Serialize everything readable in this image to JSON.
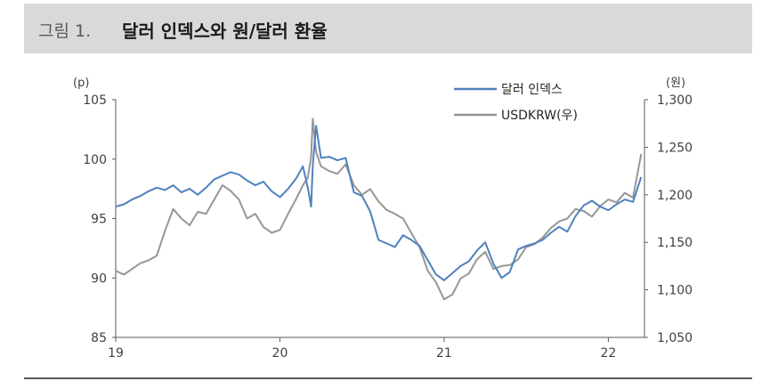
{
  "header": {
    "figure_label": "그림 1.",
    "title": "달러 인덱스와 원/달러 환율"
  },
  "colors": {
    "dollar_index": "#4f81bd",
    "usdkrw": "#969696",
    "title_bg": "#d9d9d9",
    "axis": "#595959"
  },
  "chart_data": {
    "type": "line",
    "title": "달러 인덱스와 원/달러 환율",
    "xlabel": "",
    "x_ticks": [
      "19",
      "20",
      "21",
      "22"
    ],
    "x_range": [
      2019.0,
      2022.22
    ],
    "y_left": {
      "unit_label": "(p)",
      "ylim": [
        85,
        105
      ],
      "ticks": [
        "85",
        "90",
        "95",
        "100",
        "105"
      ]
    },
    "y_right": {
      "unit_label": "(원)",
      "ylim": [
        1050,
        1300
      ],
      "ticks": [
        "1,050",
        "1,100",
        "1,150",
        "1,200",
        "1,250",
        "1,300"
      ]
    },
    "legend_position": "top-right",
    "grid": false,
    "series": [
      {
        "name": "달러 인덱스",
        "axis": "left",
        "x": [
          2019.0,
          2019.05,
          2019.1,
          2019.15,
          2019.2,
          2019.25,
          2019.3,
          2019.35,
          2019.4,
          2019.45,
          2019.5,
          2019.55,
          2019.6,
          2019.65,
          2019.7,
          2019.75,
          2019.8,
          2019.85,
          2019.9,
          2019.95,
          2020.0,
          2020.05,
          2020.1,
          2020.14,
          2020.17,
          2020.19,
          2020.2,
          2020.22,
          2020.25,
          2020.3,
          2020.35,
          2020.4,
          2020.45,
          2020.5,
          2020.55,
          2020.6,
          2020.65,
          2020.7,
          2020.75,
          2020.8,
          2020.85,
          2020.9,
          2020.95,
          2021.0,
          2021.05,
          2021.1,
          2021.15,
          2021.2,
          2021.25,
          2021.3,
          2021.35,
          2021.4,
          2021.45,
          2021.5,
          2021.55,
          2021.6,
          2021.65,
          2021.7,
          2021.75,
          2021.8,
          2021.85,
          2021.9,
          2021.95,
          2022.0,
          2022.05,
          2022.1,
          2022.15,
          2022.2
        ],
        "values": [
          96.0,
          96.2,
          96.6,
          96.9,
          97.3,
          97.6,
          97.4,
          97.8,
          97.2,
          97.5,
          97.0,
          97.6,
          98.3,
          98.6,
          98.9,
          98.7,
          98.2,
          97.8,
          98.1,
          97.3,
          96.8,
          97.5,
          98.4,
          99.4,
          97.6,
          96.0,
          99.5,
          102.8,
          100.1,
          100.2,
          99.9,
          100.1,
          97.2,
          96.9,
          95.6,
          93.2,
          92.9,
          92.6,
          93.6,
          93.2,
          92.7,
          91.5,
          90.3,
          89.8,
          90.4,
          91.0,
          91.4,
          92.3,
          93.0,
          91.2,
          90.0,
          90.5,
          92.4,
          92.7,
          92.9,
          93.2,
          93.8,
          94.3,
          93.9,
          95.2,
          96.1,
          96.5,
          96.0,
          95.7,
          96.2,
          96.6,
          96.4,
          98.5
        ]
      },
      {
        "name": "USDKRW(우)",
        "axis": "right",
        "x": [
          2019.0,
          2019.05,
          2019.1,
          2019.15,
          2019.2,
          2019.25,
          2019.3,
          2019.35,
          2019.4,
          2019.45,
          2019.5,
          2019.55,
          2019.6,
          2019.65,
          2019.7,
          2019.75,
          2019.8,
          2019.85,
          2019.9,
          2019.95,
          2020.0,
          2020.05,
          2020.1,
          2020.14,
          2020.17,
          2020.19,
          2020.2,
          2020.22,
          2020.25,
          2020.3,
          2020.35,
          2020.4,
          2020.45,
          2020.5,
          2020.55,
          2020.6,
          2020.65,
          2020.7,
          2020.75,
          2020.8,
          2020.85,
          2020.9,
          2020.95,
          2021.0,
          2021.05,
          2021.1,
          2021.15,
          2021.2,
          2021.25,
          2021.3,
          2021.35,
          2021.4,
          2021.45,
          2021.5,
          2021.55,
          2021.6,
          2021.65,
          2021.7,
          2021.75,
          2021.8,
          2021.85,
          2021.9,
          2021.95,
          2022.0,
          2022.05,
          2022.1,
          2022.15,
          2022.2
        ],
        "values": [
          1120,
          1116,
          1122,
          1128,
          1131,
          1136,
          1162,
          1185,
          1175,
          1168,
          1182,
          1180,
          1195,
          1210,
          1204,
          1195,
          1175,
          1180,
          1166,
          1160,
          1163,
          1180,
          1196,
          1210,
          1218,
          1240,
          1280,
          1245,
          1230,
          1225,
          1222,
          1232,
          1210,
          1200,
          1206,
          1193,
          1184,
          1180,
          1175,
          1160,
          1145,
          1120,
          1108,
          1090,
          1095,
          1112,
          1117,
          1132,
          1140,
          1122,
          1125,
          1126,
          1132,
          1145,
          1148,
          1155,
          1165,
          1172,
          1175,
          1185,
          1183,
          1177,
          1188,
          1195,
          1192,
          1202,
          1197,
          1243
        ]
      }
    ]
  }
}
